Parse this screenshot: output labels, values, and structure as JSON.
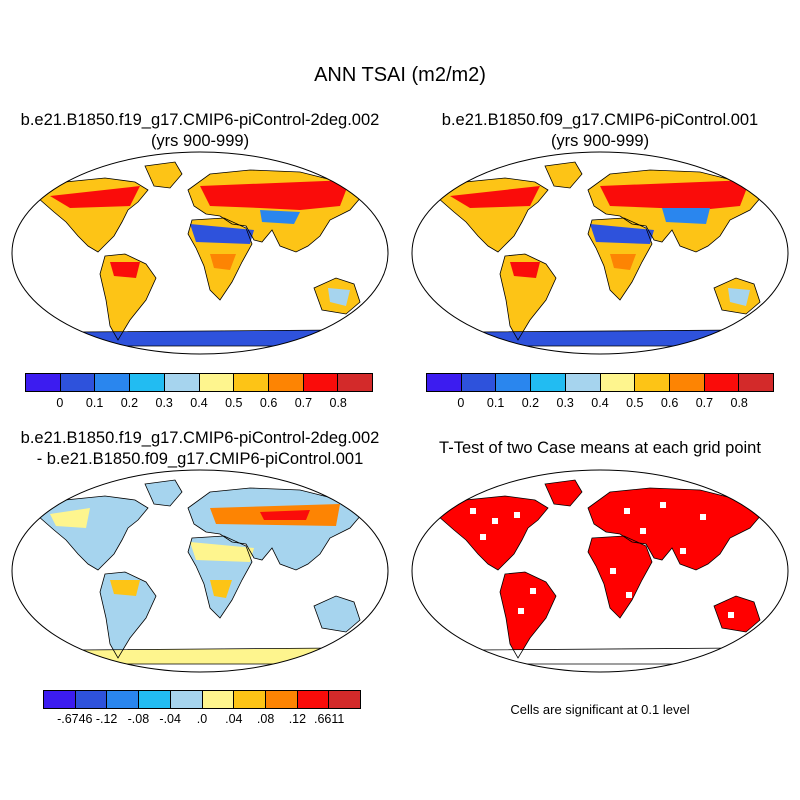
{
  "title": "ANN TSAI (m2/m2)",
  "panels": [
    {
      "title_line1": "b.e21.B1850.f19_g17.CMIP6-piControl-2deg.002",
      "title_line2": "(yrs 900-999)"
    },
    {
      "title_line1": "b.e21.B1850.f09_g17.CMIP6-piControl.001",
      "title_line2": "(yrs 900-999)"
    },
    {
      "title_line1": "b.e21.B1850.f19_g17.CMIP6-piControl-2deg.002",
      "title_line2": "- b.e21.B1850.f09_g17.CMIP6-piControl.001"
    },
    {
      "title_line1": "T-Test of two Case means at each grid point"
    }
  ],
  "colorbars": {
    "absolute": {
      "colors": [
        "#3c1cf0",
        "#2e52dc",
        "#2a86ee",
        "#22bcf2",
        "#a6d4ee",
        "#fef58e",
        "#fdc416",
        "#fd8403",
        "#fa0c0a",
        "#d32a2a"
      ],
      "labels": [
        "0",
        "0.1",
        "0.2",
        "0.3",
        "0.4",
        "0.5",
        "0.6",
        "0.7",
        "0.8"
      ]
    },
    "difference": {
      "colors": [
        "#3c1cf0",
        "#2e52dc",
        "#2a86ee",
        "#22bcf2",
        "#a6d4ee",
        "#fef58e",
        "#fdc416",
        "#fd8403",
        "#fa0c0a",
        "#d32a2a"
      ],
      "labels": [
        "-.6746",
        "-.12",
        "-.08",
        "-.04",
        ".0",
        ".04",
        ".08",
        ".12",
        ".6611"
      ]
    }
  },
  "significance_color": "#ff0000",
  "significance_note": "Cells are significant at 0.1 level"
}
